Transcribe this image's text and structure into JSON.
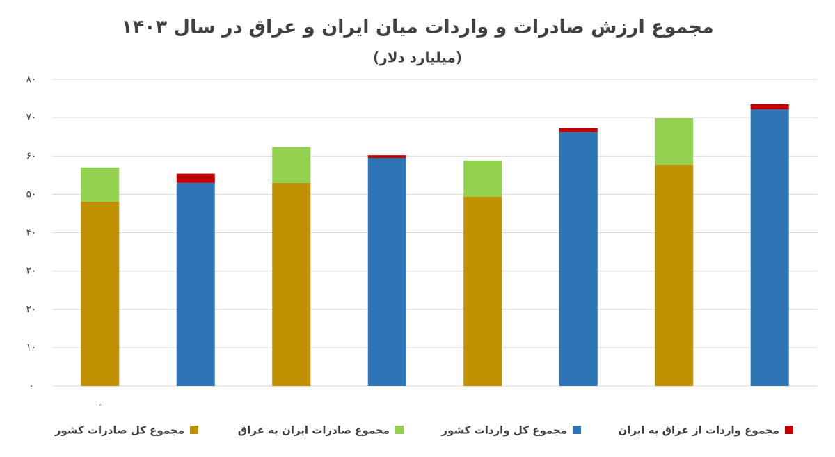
{
  "chart_data": {
    "type": "bar",
    "stacked": true,
    "title": "مجموع ارزش صادرات و واردات میان ایران و عراق در سال ۱۴۰۳",
    "subtitle": "(میلیارد دلار)",
    "categories": [
      "۰",
      null,
      null,
      null,
      null,
      null,
      null,
      null
    ],
    "series": [
      {
        "name": "مجموع کل صادرات کشور",
        "color": "#bf9000",
        "values": [
          48.1,
          null,
          53.0,
          null,
          49.4,
          null,
          57.7,
          null
        ]
      },
      {
        "name": "مجموع صادرات ایران به عراق",
        "color": "#92d050",
        "values": [
          8.9,
          null,
          9.3,
          null,
          9.4,
          null,
          12.2,
          null
        ]
      },
      {
        "name": "مجموع کل واردات کشور",
        "color": "#2e75b6",
        "values": [
          null,
          53.0,
          null,
          59.5,
          null,
          66.2,
          null,
          72.2
        ]
      },
      {
        "name": "مجموع واردات از عراق به ایران",
        "color": "#c00000",
        "values": [
          null,
          2.4,
          null,
          0.7,
          null,
          1.1,
          null,
          1.3
        ]
      }
    ],
    "ylim": [
      0,
      80
    ],
    "yticks": [
      {
        "value": 0,
        "label": "۰"
      },
      {
        "value": 10,
        "label": "۱۰"
      },
      {
        "value": 20,
        "label": "۲۰"
      },
      {
        "value": 30,
        "label": "۳۰"
      },
      {
        "value": 40,
        "label": "۴۰"
      },
      {
        "value": 50,
        "label": "۵۰"
      },
      {
        "value": 60,
        "label": "۶۰"
      },
      {
        "value": 70,
        "label": "۷۰"
      },
      {
        "value": 80,
        "label": "۸۰"
      }
    ],
    "grid": true
  }
}
